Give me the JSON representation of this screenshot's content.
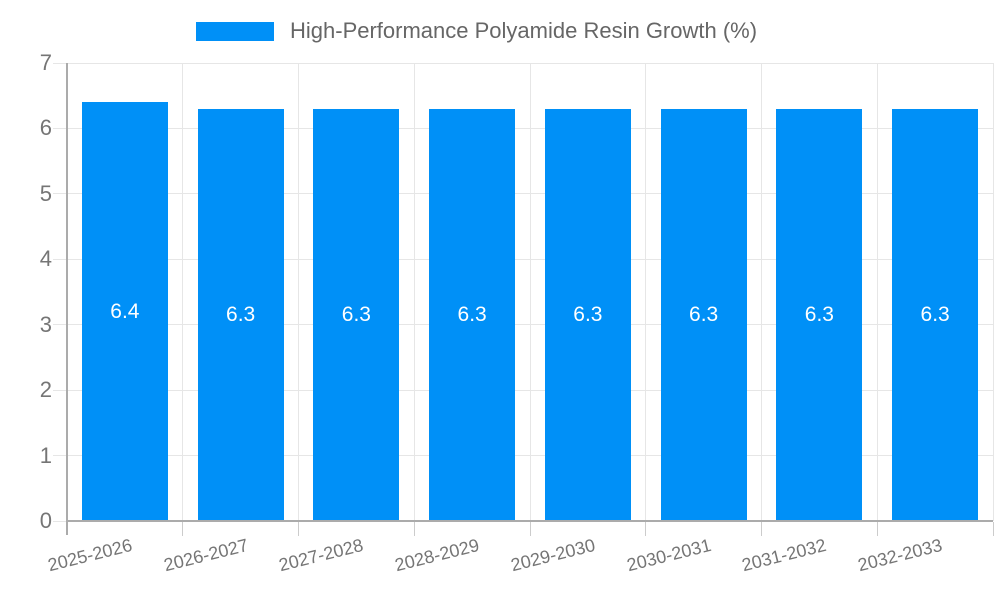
{
  "legend": {
    "label": "High-Performance Polyamide Resin Growth (%)"
  },
  "chart_data": {
    "type": "bar",
    "title": "High-Performance Polyamide Resin Growth (%)",
    "categories": [
      "2025-2026",
      "2026-2027",
      "2027-2028",
      "2028-2029",
      "2029-2030",
      "2030-2031",
      "2031-2032",
      "2032-2033"
    ],
    "values": [
      6.4,
      6.3,
      6.3,
      6.3,
      6.3,
      6.3,
      6.3,
      6.3
    ],
    "value_labels": [
      "6.4",
      "6.3",
      "6.3",
      "6.3",
      "6.3",
      "6.3",
      "6.3",
      "6.3"
    ],
    "xlabel": "",
    "ylabel": "",
    "ylim": [
      0,
      7
    ],
    "yticks": [
      0,
      1,
      2,
      3,
      4,
      5,
      6,
      7
    ],
    "grid": true,
    "legend_position": "top",
    "colors": {
      "bar": "#0090f7",
      "bar_value_text": "#ffffff",
      "axis_text": "#757575",
      "legend_text": "#666666",
      "gridline": "#e6e6e6",
      "tick": "#cccccc",
      "axis_line": "#ababab"
    }
  }
}
